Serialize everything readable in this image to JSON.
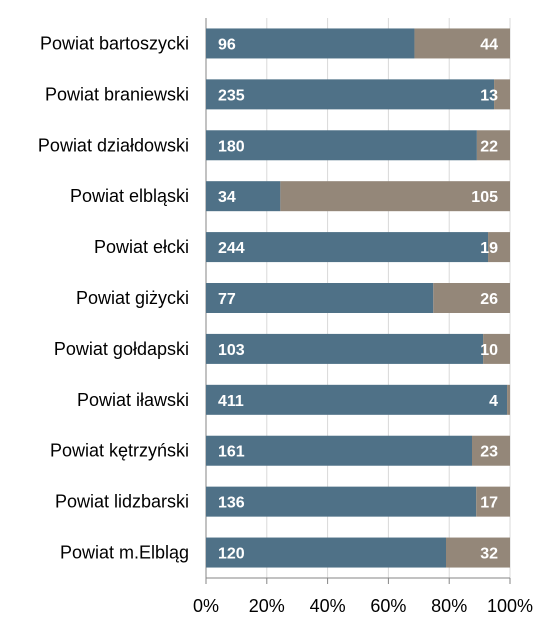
{
  "chart_data": {
    "type": "bar",
    "orientation": "horizontal",
    "stacked": "percent",
    "categories": [
      "Powiat bartoszycki",
      "Powiat braniewski",
      "Powiat działdowski",
      "Powiat elbląski",
      "Powiat ełcki",
      "Powiat giżycki",
      "Powiat gołdapski",
      "Powiat iławski",
      "Powiat kętrzyński",
      "Powiat lidzbarski",
      "Powiat m.Elbląg"
    ],
    "series": [
      {
        "values": [
          96,
          235,
          180,
          34,
          244,
          77,
          103,
          411,
          161,
          136,
          120
        ],
        "color": "#4f7187"
      },
      {
        "values": [
          44,
          13,
          22,
          105,
          19,
          26,
          10,
          4,
          23,
          17,
          32
        ],
        "color": "#948779"
      }
    ],
    "x_ticks": [
      "0%",
      "20%",
      "40%",
      "60%",
      "80%",
      "100%"
    ],
    "xlim": [
      0,
      100
    ],
    "grid": true,
    "legend": "none"
  }
}
